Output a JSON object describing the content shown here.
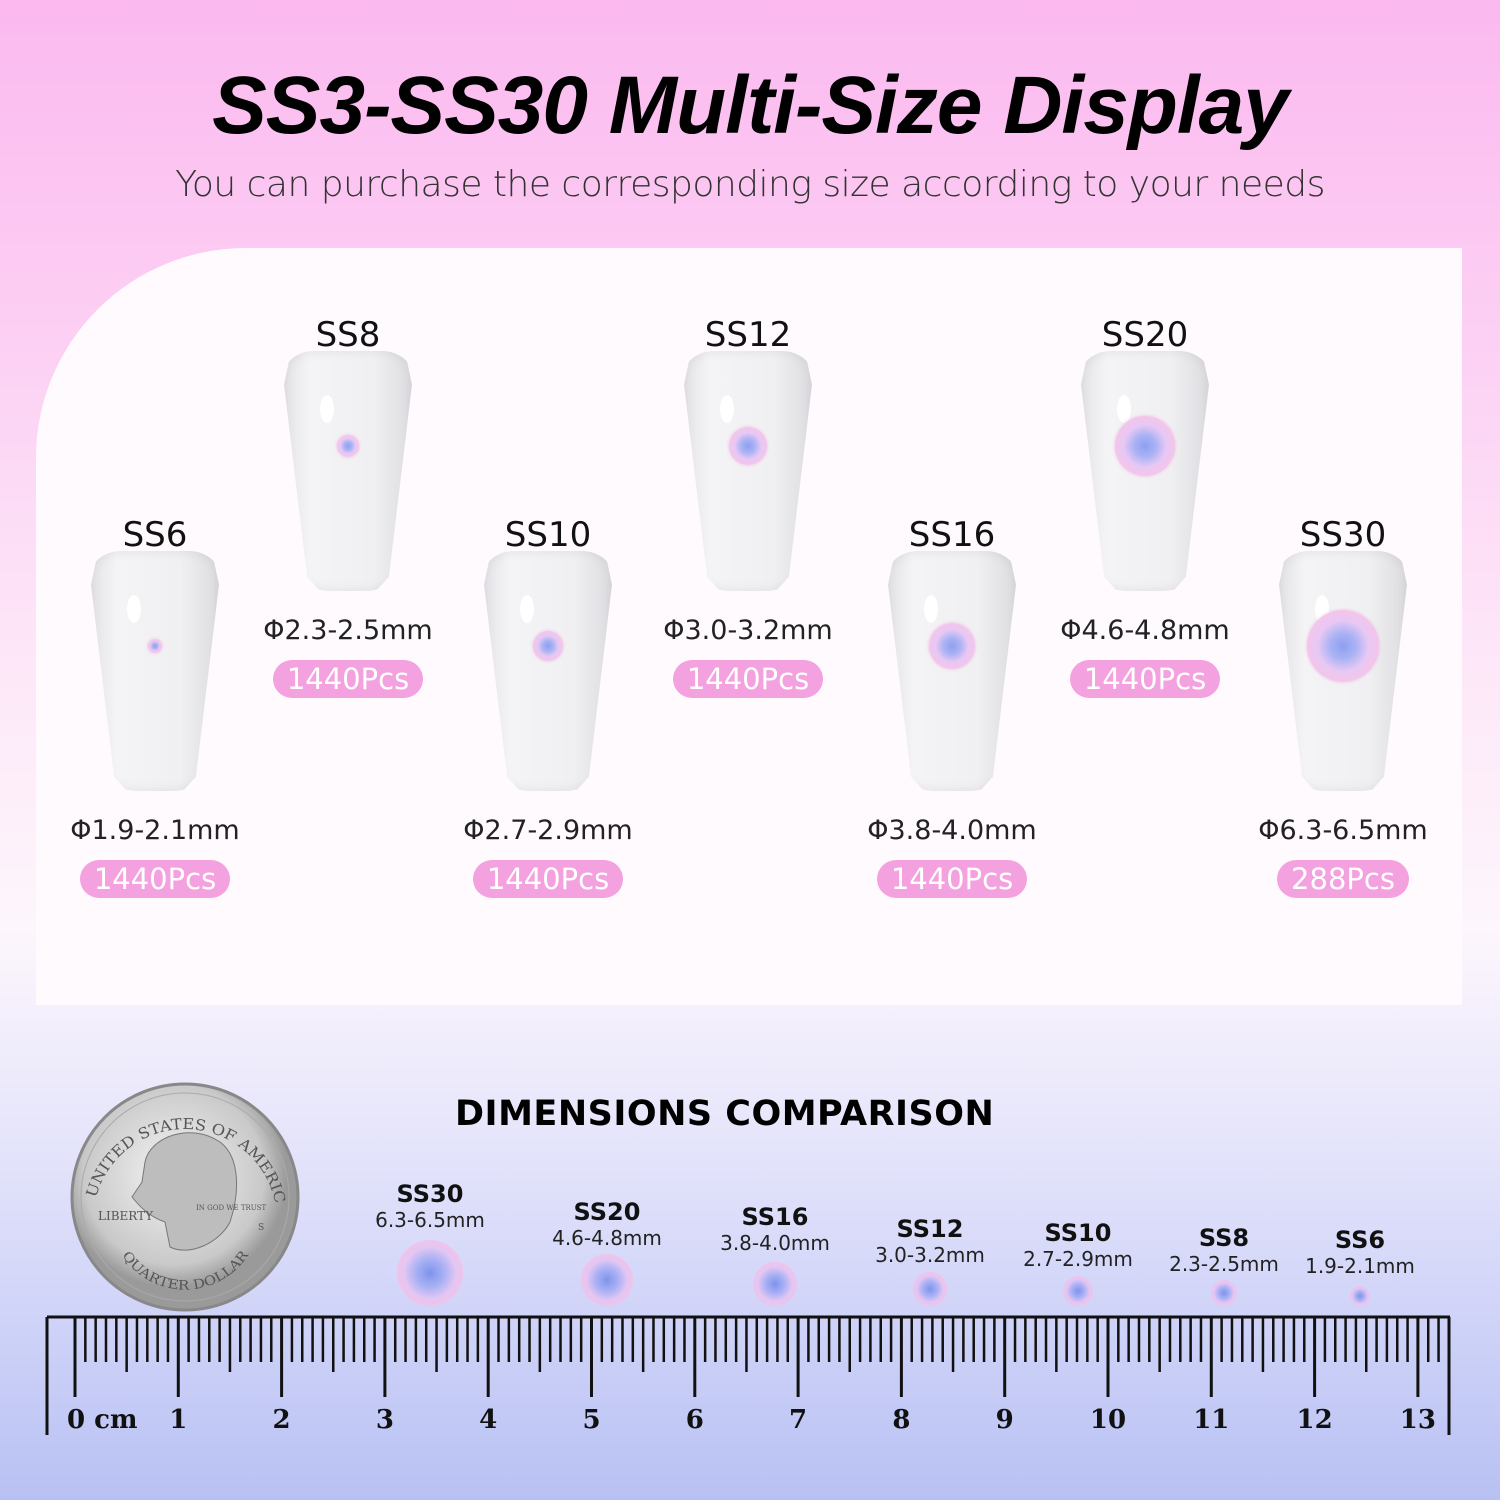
{
  "header": {
    "title": "SS3-SS30 Multi-Size Display",
    "subtitle": "You can purchase the corresponding size according to your needs"
  },
  "colors": {
    "pill": "#f3a2df",
    "gem_center": "#8f9ff0",
    "gem_edge": "#f6c4e8"
  },
  "display_items": [
    {
      "size": "SS6",
      "diameter": "Φ1.9-2.1mm",
      "count": "1440Pcs",
      "row": "low"
    },
    {
      "size": "SS8",
      "diameter": "Φ2.3-2.5mm",
      "count": "1440Pcs",
      "row": "high"
    },
    {
      "size": "SS10",
      "diameter": "Φ2.7-2.9mm",
      "count": "1440Pcs",
      "row": "low"
    },
    {
      "size": "SS12",
      "diameter": "Φ3.0-3.2mm",
      "count": "1440Pcs",
      "row": "high"
    },
    {
      "size": "SS16",
      "diameter": "Φ3.8-4.0mm",
      "count": "1440Pcs",
      "row": "low"
    },
    {
      "size": "SS20",
      "diameter": "Φ4.6-4.8mm",
      "count": "1440Pcs",
      "row": "high"
    },
    {
      "size": "SS30",
      "diameter": "Φ6.3-6.5mm",
      "count": "288Pcs",
      "row": "low"
    }
  ],
  "comparison": {
    "title": "DIMENSIONS COMPARISON",
    "items": [
      {
        "size": "SS30",
        "mm": "6.3-6.5mm"
      },
      {
        "size": "SS20",
        "mm": "4.6-4.8mm"
      },
      {
        "size": "SS16",
        "mm": "3.8-4.0mm"
      },
      {
        "size": "SS12",
        "mm": "3.0-3.2mm"
      },
      {
        "size": "SS10",
        "mm": "2.7-2.9mm"
      },
      {
        "size": "SS8",
        "mm": "2.3-2.5mm"
      },
      {
        "size": "SS6",
        "mm": "1.9-2.1mm"
      }
    ],
    "coin": {
      "top_text": "UNITED STATES OF AMERICA",
      "left_text": "LIBERTY",
      "motto": "IN GOD WE TRUST",
      "bottom_text": "QUARTER DOLLAR",
      "mint": "S"
    },
    "ruler": {
      "unit": "cm",
      "labels": [
        "0 cm",
        "1",
        "2",
        "3",
        "4",
        "5",
        "6",
        "7",
        "8",
        "9",
        "10",
        "11",
        "12",
        "13"
      ]
    }
  }
}
